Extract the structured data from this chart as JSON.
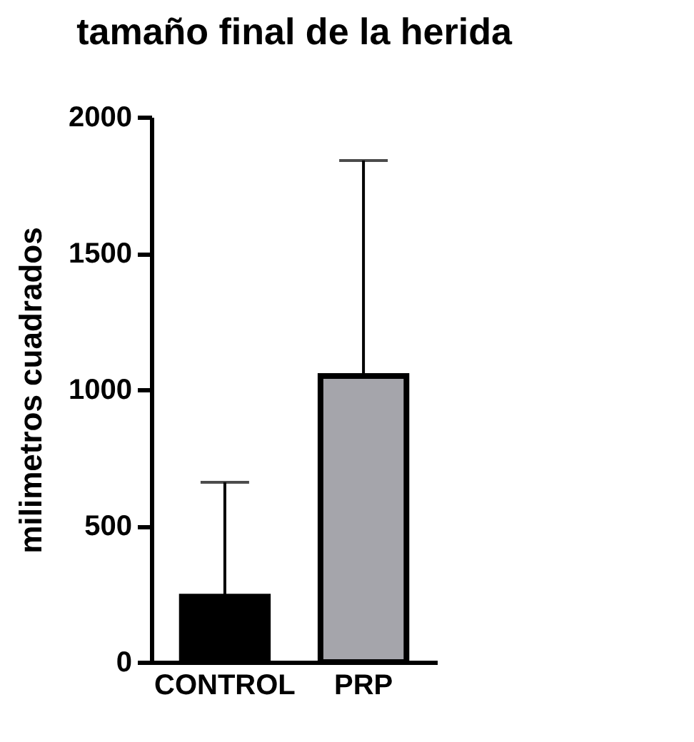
{
  "chart_data": {
    "type": "bar",
    "title": "tamaño final de la herida",
    "ylabel": "milimetros cuadrados",
    "categories": [
      "CONTROL",
      "PRP"
    ],
    "values": [
      240,
      1050
    ],
    "colors": [
      "#000000",
      "#a5a5ab"
    ],
    "errors": [
      [
        240,
        660
      ],
      [
        1050,
        1840
      ]
    ],
    "ylim": [
      0,
      2000
    ],
    "yticks": [
      0,
      500,
      1000,
      1500,
      2000
    ],
    "grid": false,
    "legend": false
  }
}
